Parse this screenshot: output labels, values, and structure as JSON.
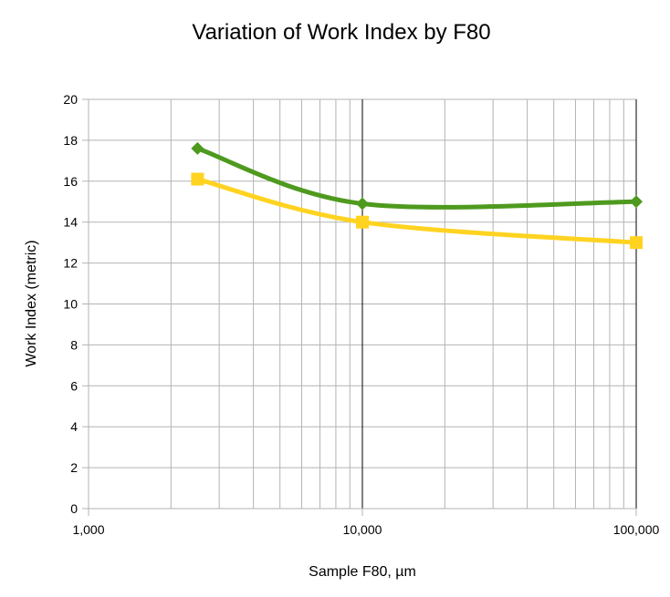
{
  "chart_data": {
    "type": "line",
    "title": "Variation of Work Index by F80",
    "xlabel": "Sample F80, µm",
    "ylabel": "Work Index (metric)",
    "x_scale": "log",
    "xlim": [
      1000,
      100000
    ],
    "ylim": [
      0,
      20
    ],
    "x_ticks": [
      1000,
      10000,
      100000
    ],
    "x_tick_labels": [
      "1,000",
      "10,000",
      "100,000"
    ],
    "y_ticks": [
      0,
      2,
      4,
      6,
      8,
      10,
      12,
      14,
      16,
      18,
      20
    ],
    "grid": true,
    "legend": "none",
    "series": [
      {
        "color": "#4e9a1e",
        "marker": "diamond",
        "x": [
          2500,
          10000,
          100000
        ],
        "y": [
          17.6,
          14.9,
          15.0
        ]
      },
      {
        "color": "#ffd320",
        "marker": "square",
        "x": [
          2500,
          10000,
          100000
        ],
        "y": [
          16.1,
          14.0,
          13.0
        ]
      }
    ]
  }
}
